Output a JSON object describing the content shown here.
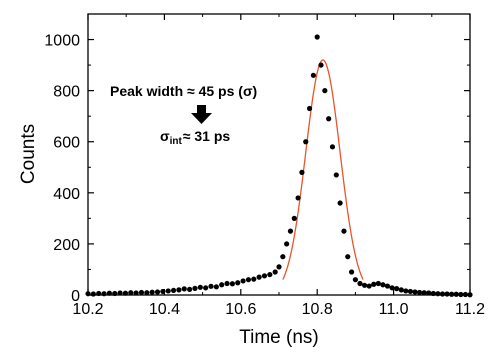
{
  "chart_data": {
    "type": "scatter",
    "xlabel": "Time (ns)",
    "ylabel": "Counts",
    "xlim": [
      10.2,
      11.2
    ],
    "ylim": [
      0,
      1100
    ],
    "xticks": [
      "10.2",
      "10.4",
      "10.6",
      "10.8",
      "11.0",
      "11.2"
    ],
    "yticks": [
      "0",
      "200",
      "400",
      "600",
      "800",
      "1000"
    ],
    "xtick_values": [
      10.2,
      10.4,
      10.6,
      10.8,
      11.0,
      11.2
    ],
    "ytick_values": [
      0,
      200,
      400,
      600,
      800,
      1000
    ],
    "grid": false,
    "series": [
      {
        "kind": "points",
        "color": "#000000",
        "x": [
          10.2,
          10.214,
          10.228,
          10.242,
          10.256,
          10.27,
          10.284,
          10.298,
          10.312,
          10.326,
          10.34,
          10.354,
          10.368,
          10.382,
          10.396,
          10.41,
          10.424,
          10.438,
          10.452,
          10.466,
          10.48,
          10.494,
          10.508,
          10.522,
          10.536,
          10.55,
          10.564,
          10.578,
          10.592,
          10.606,
          10.62,
          10.634,
          10.648,
          10.662,
          10.676,
          10.69,
          10.7,
          10.71,
          10.72,
          10.73,
          10.74,
          10.75,
          10.76,
          10.77,
          10.78,
          10.79,
          10.8,
          10.81,
          10.82,
          10.83,
          10.84,
          10.85,
          10.86,
          10.87,
          10.88,
          10.89,
          10.9,
          10.912,
          10.924,
          10.936,
          10.948,
          10.96,
          10.972,
          10.984,
          10.996,
          11.008,
          11.02,
          11.032,
          11.044,
          11.056,
          11.068,
          11.08,
          11.092,
          11.104,
          11.116,
          11.128,
          11.14,
          11.152,
          11.164,
          11.176,
          11.188,
          11.2
        ],
        "y": [
          5,
          4,
          6,
          5,
          7,
          6,
          8,
          7,
          9,
          8,
          10,
          9,
          11,
          12,
          14,
          16,
          18,
          20,
          24,
          22,
          26,
          30,
          28,
          34,
          32,
          40,
          45,
          44,
          48,
          55,
          60,
          62,
          70,
          75,
          80,
          90,
          110,
          150,
          200,
          250,
          300,
          380,
          480,
          600,
          730,
          860,
          1010,
          900,
          800,
          690,
          580,
          470,
          360,
          250,
          150,
          90,
          60,
          45,
          38,
          35,
          42,
          45,
          40,
          35,
          28,
          25,
          20,
          16,
          14,
          12,
          10,
          9,
          8,
          6,
          5,
          4,
          4,
          3,
          3,
          2,
          2,
          1
        ]
      },
      {
        "kind": "fit-line",
        "color": "#e8552a",
        "function": "gaussian",
        "amplitude": 920,
        "center": 10.815,
        "sigma": 0.045,
        "range": [
          10.71,
          10.92
        ]
      }
    ],
    "annotations": [
      {
        "text": "Peak width ≈ 45 ps (σ)"
      },
      {
        "text_main": "σ",
        "text_sub": "int",
        "text_tail": "≈ 31 ps"
      }
    ]
  }
}
